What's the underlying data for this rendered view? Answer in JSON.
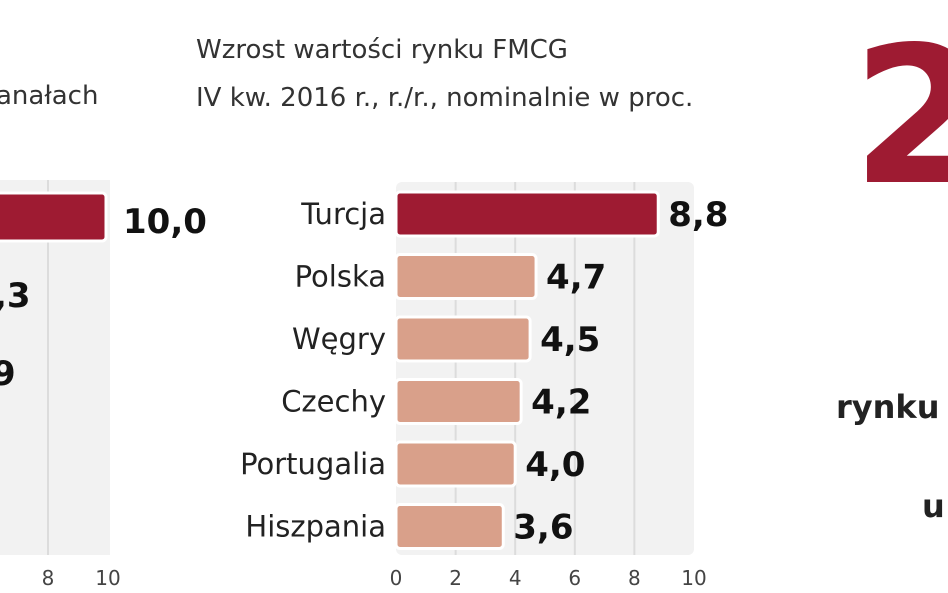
{
  "colors": {
    "highlight": "#9e1b32",
    "bar": "#d9a08a",
    "plot_bg": "#f2f2f2",
    "grid": "#dcdcdc"
  },
  "left_fragment": {
    "title_fragment": "anałach",
    "value_labels": [
      "10,0",
      ",3",
      "9"
    ],
    "tick_labels": [
      "8",
      "10"
    ]
  },
  "right_fragment": {
    "big_digit": "2",
    "text_1": "rynku",
    "text_2": "u"
  },
  "chart_data": {
    "type": "bar",
    "orientation": "horizontal",
    "title": "Wzrost wartości rynku FMCG",
    "subtitle": "IV kw. 2016 r., r./r., nominalnie w proc.",
    "categories": [
      "Turcja",
      "Polska",
      "Węgry",
      "Czechy",
      "Portugalia",
      "Hiszpania"
    ],
    "values": [
      8.8,
      4.7,
      4.5,
      4.2,
      4.0,
      3.6
    ],
    "value_labels": [
      "8,8",
      "4,7",
      "4,5",
      "4,2",
      "4,0",
      "3,6"
    ],
    "highlight_index": 0,
    "xlim": [
      0,
      10
    ],
    "xticks": [
      0,
      2,
      4,
      6,
      8,
      10
    ],
    "grid": true
  }
}
